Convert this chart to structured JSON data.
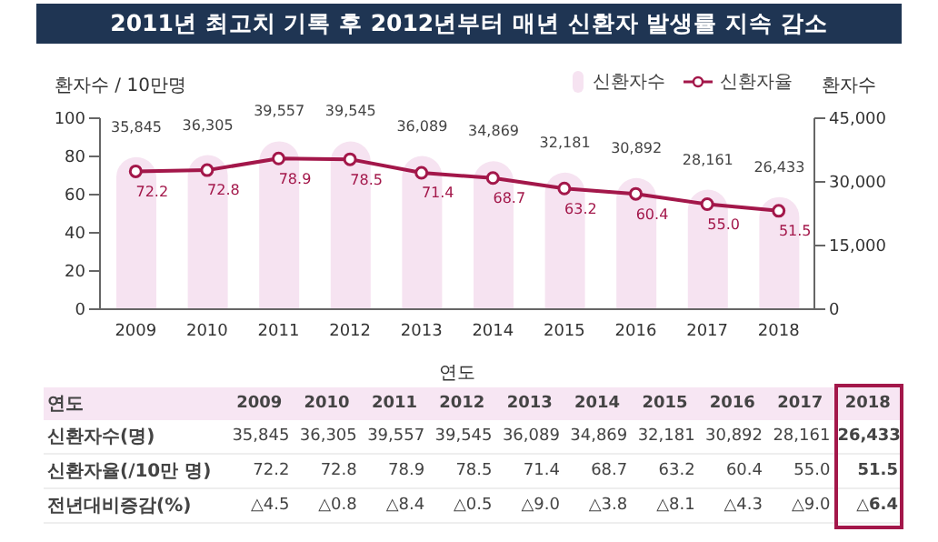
{
  "chart_data": {
    "type": "bar",
    "title": "2011년 최고치 기록 후 2012년부터 매년 신환자 발생률 지속 감소",
    "categories": [
      "2009",
      "2010",
      "2011",
      "2012",
      "2013",
      "2014",
      "2015",
      "2016",
      "2017",
      "2018"
    ],
    "series": [
      {
        "name": "신환자수",
        "axis": "y2",
        "color": "#f6e3f1",
        "values": [
          35845,
          36305,
          39557,
          39545,
          36089,
          34869,
          32181,
          30892,
          28161,
          26433
        ],
        "value_labels": [
          "35,845",
          "36,305",
          "39,557",
          "39,545",
          "36,089",
          "34,869",
          "32,181",
          "30,892",
          "28,161",
          "26,433"
        ]
      },
      {
        "name": "신환자율",
        "type": "line",
        "axis": "y",
        "color": "#a3174a",
        "values": [
          72.2,
          72.8,
          78.9,
          78.5,
          71.4,
          68.7,
          63.2,
          60.4,
          55.0,
          51.5
        ],
        "value_labels": [
          "72.2",
          "72.8",
          "78.9",
          "78.5",
          "71.4",
          "68.7",
          "63.2",
          "60.4",
          "55.0",
          "51.5"
        ]
      }
    ],
    "xlabel": "연도",
    "ylabel": "환자수 / 10만명",
    "y2label": "환자수",
    "ylim": [
      0,
      100
    ],
    "yticks": [
      0,
      20,
      40,
      60,
      80,
      100
    ],
    "y2lim": [
      0,
      45000
    ],
    "y2ticks": [
      0,
      {
        "value": 15000,
        "label": "15,000"
      },
      {
        "value": 30000,
        "label": "30,000"
      },
      {
        "value": 45000,
        "label": "45,000"
      }
    ],
    "legend": "top right",
    "marker": "circle",
    "grid": false,
    "annotations": [
      "연도",
      "신환자수(명)",
      "신환자율(/10만 명)",
      "전년대비증감(%)",
      "△4.5",
      "△0.8",
      "△8.4",
      "△0.5",
      "△9.0",
      "△3.8",
      "△8.1",
      "△4.3",
      "△9.0",
      "△6.4"
    ]
  }
}
